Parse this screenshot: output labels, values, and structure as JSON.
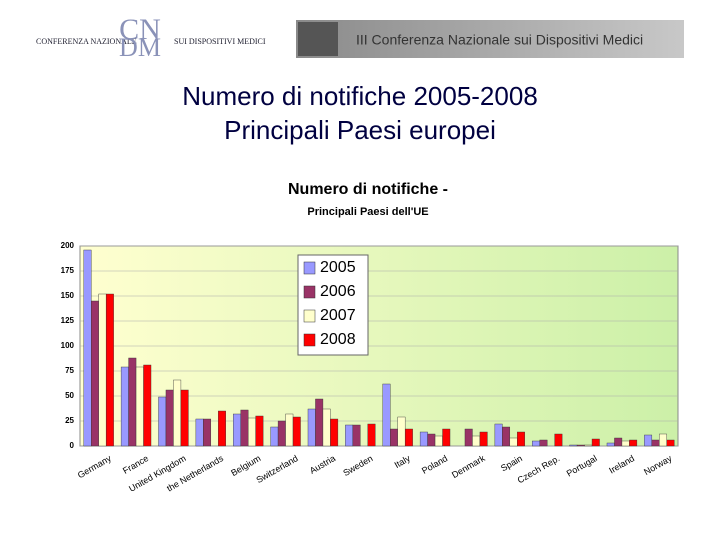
{
  "header": {
    "logo_left": "CONFERENZA NAZIONALE",
    "logo_mark_top": "CN",
    "logo_mark_bottom": "DM",
    "logo_right": "SUI DISPOSITIVI MEDICI",
    "banner": "III Conferenza Nazionale sui Dispositivi Medici"
  },
  "slide_title": [
    "Numero di notifiche 2005-2008",
    "Principali Paesi europei"
  ],
  "chart_data": {
    "type": "bar",
    "title": "Numero di notifiche -",
    "subtitle": "Principali Paesi dell'UE",
    "categories": [
      "Germany",
      "France",
      "United Kingdom",
      "the Netherlands",
      "Belgium",
      "Switzerland",
      "Austria",
      "Sweden",
      "Italy",
      "Poland",
      "Denmark",
      "Spain",
      "Czech Rep.",
      "Portugal",
      "Ireland",
      "Norway"
    ],
    "series": [
      {
        "name": "2005",
        "color": "#9999ff",
        "values": [
          196,
          79,
          49,
          27,
          32,
          19,
          37,
          21,
          62,
          14,
          null,
          22,
          5,
          1,
          3,
          11
        ]
      },
      {
        "name": "2006",
        "color": "#993366",
        "values": [
          145,
          88,
          56,
          27,
          36,
          25,
          47,
          21,
          17,
          12,
          17,
          19,
          6,
          1,
          8,
          6
        ]
      },
      {
        "name": "2007",
        "color": "#ffffcc",
        "values": [
          152,
          79,
          66,
          null,
          28,
          32,
          37,
          null,
          29,
          10,
          10,
          8,
          null,
          1,
          5,
          12
        ]
      },
      {
        "name": "2008",
        "color": "#ff0000",
        "values": [
          152,
          81,
          56,
          35,
          30,
          29,
          27,
          22,
          17,
          17,
          14,
          14,
          12,
          7,
          6,
          6
        ]
      }
    ],
    "ylim": [
      0,
      200
    ],
    "yticks": [
      0,
      25,
      50,
      75,
      100,
      125,
      150,
      175,
      200
    ],
    "grid": true,
    "legend": "top-left"
  }
}
